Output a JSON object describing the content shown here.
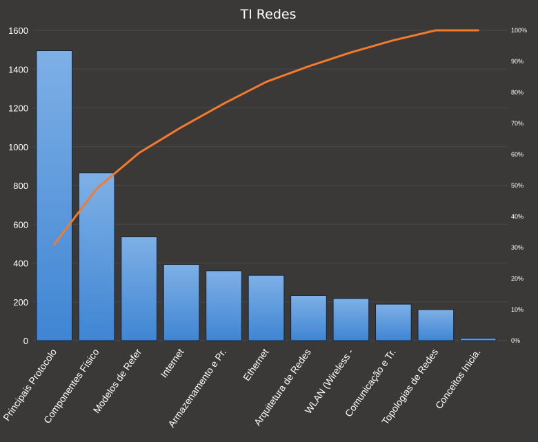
{
  "chart_data": {
    "type": "bar",
    "title": "TI Redes",
    "xlabel": "",
    "ylabel": "",
    "categories": [
      "Principais Protocolo",
      "Componentes Físico",
      "Modelos de Refer",
      "Internet",
      "Armazenamento  e Pr.",
      "Ethernet",
      "Arquitetura de Redes",
      "WLAN (Wireless -",
      "Comunicação e Tr.",
      "Topologias de Redes",
      "Conceitos Inicia."
    ],
    "series": [
      {
        "type": "bar",
        "axis": "left",
        "values": [
          1495,
          865,
          535,
          393,
          360,
          337,
          233,
          217,
          188,
          160,
          12
        ]
      },
      {
        "type": "line",
        "axis": "right",
        "values": [
          0.31,
          0.49,
          0.605,
          0.688,
          0.764,
          0.834,
          0.884,
          0.929,
          0.968,
          1.0,
          1.0
        ]
      }
    ],
    "ylim": [
      0,
      1600
    ],
    "yticks": [
      "0",
      "200",
      "400",
      "600",
      "800",
      "1000",
      "1200",
      "1400",
      "1600"
    ],
    "y2lim": [
      0,
      1
    ],
    "y2ticks": [
      "0%",
      "10%",
      "20%",
      "30%",
      "40%",
      "50%",
      "60%",
      "70%",
      "80%",
      "90%",
      "100%"
    ],
    "grid": true,
    "legend": "none",
    "colors": {
      "background": "#3a3938",
      "bar_top": "#7eb0e6",
      "bar_bottom": "#3f85d3",
      "bar_edge": "#14263b",
      "line": "#f47a2c",
      "grid": "#4a4a4a",
      "text": "#ffffff"
    }
  }
}
